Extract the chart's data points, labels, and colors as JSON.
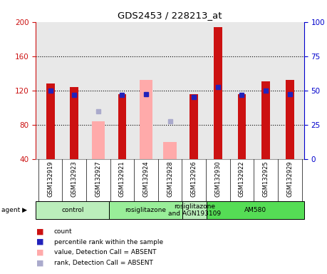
{
  "title": "GDS2453 / 228213_at",
  "samples": [
    "GSM132919",
    "GSM132923",
    "GSM132927",
    "GSM132921",
    "GSM132924",
    "GSM132928",
    "GSM132926",
    "GSM132930",
    "GSM132922",
    "GSM132925",
    "GSM132929"
  ],
  "red_values": [
    128,
    124,
    null,
    116,
    null,
    null,
    116,
    194,
    116,
    131,
    132
  ],
  "pink_values": [
    null,
    null,
    84,
    null,
    132,
    60,
    null,
    null,
    null,
    null,
    null
  ],
  "blue_sq": [
    120,
    115,
    null,
    115,
    116,
    null,
    112,
    124,
    115,
    120,
    116
  ],
  "lavender_sq": [
    null,
    null,
    96,
    null,
    null,
    84,
    null,
    null,
    null,
    null,
    null
  ],
  "ylim_left": [
    40,
    200
  ],
  "ylim_right": [
    0,
    100
  ],
  "yticks_left": [
    40,
    80,
    120,
    160,
    200
  ],
  "yticks_right": [
    0,
    25,
    50,
    75,
    100
  ],
  "agent_groups": [
    {
      "label": "control",
      "start": 0,
      "end": 3,
      "color": "#bbeebb"
    },
    {
      "label": "rosiglitazone",
      "start": 3,
      "end": 6,
      "color": "#99ee99"
    },
    {
      "label": "rosiglitazone\nand AGN193109",
      "start": 6,
      "end": 7,
      "color": "#bbeebb"
    },
    {
      "label": "AM580",
      "start": 7,
      "end": 11,
      "color": "#55dd55"
    }
  ],
  "red_color": "#cc1111",
  "pink_color": "#ffaaaa",
  "blue_color": "#2222bb",
  "lavender_color": "#aaaacc",
  "background_plot": "#e8e8e8",
  "background_fig": "#ffffff",
  "left_axis_color": "#cc1111",
  "right_axis_color": "#0000cc",
  "grid_yticks": [
    80,
    120,
    160
  ],
  "legend_items": [
    {
      "color": "#cc1111",
      "label": "count"
    },
    {
      "color": "#2222bb",
      "label": "percentile rank within the sample"
    },
    {
      "color": "#ffaaaa",
      "label": "value, Detection Call = ABSENT"
    },
    {
      "color": "#aaaacc",
      "label": "rank, Detection Call = ABSENT"
    }
  ]
}
